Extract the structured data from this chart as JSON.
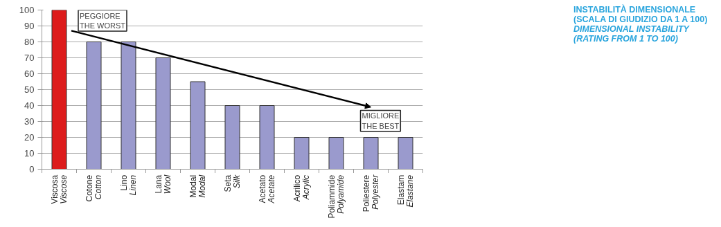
{
  "chart_data": {
    "type": "bar",
    "title": "INSTABILITÀ DIMENSIONALE\n(SCALA DI GIUDIZIO DA 1 A 100)",
    "subtitle": "DIMENSIONAL INSTABILITY\n(RATING FROM 1 TO 100)",
    "categories": [
      "Viscosa\nViscose",
      "Cotone\nCotton",
      "Lino\nLinen",
      "Lana\nWool",
      "Modal\nModal",
      "Seta\nSilk",
      "Acetato\nAcetate",
      "Acrilico\nAcrylic",
      "Poliammide\nPolyamide",
      "Poliestere\nPolyester",
      "Elastam\nElastane"
    ],
    "values": [
      100,
      80,
      80,
      70,
      55,
      40,
      40,
      20,
      20,
      20,
      20
    ],
    "colors": [
      "#dd1c1c",
      "#9a9acd",
      "#9a9acd",
      "#9a9acd",
      "#9a9acd",
      "#9a9acd",
      "#9a9acd",
      "#9a9acd",
      "#9a9acd",
      "#9a9acd",
      "#9a9acd"
    ],
    "annotations": [
      "PEGGIORE\nTHE WORST",
      "MIGLIORE\nTHE BEST"
    ],
    "ylim": [
      0,
      100
    ],
    "yticks": [
      0,
      10,
      20,
      30,
      40,
      50,
      60,
      70,
      80,
      90,
      100
    ],
    "grid": "y"
  }
}
